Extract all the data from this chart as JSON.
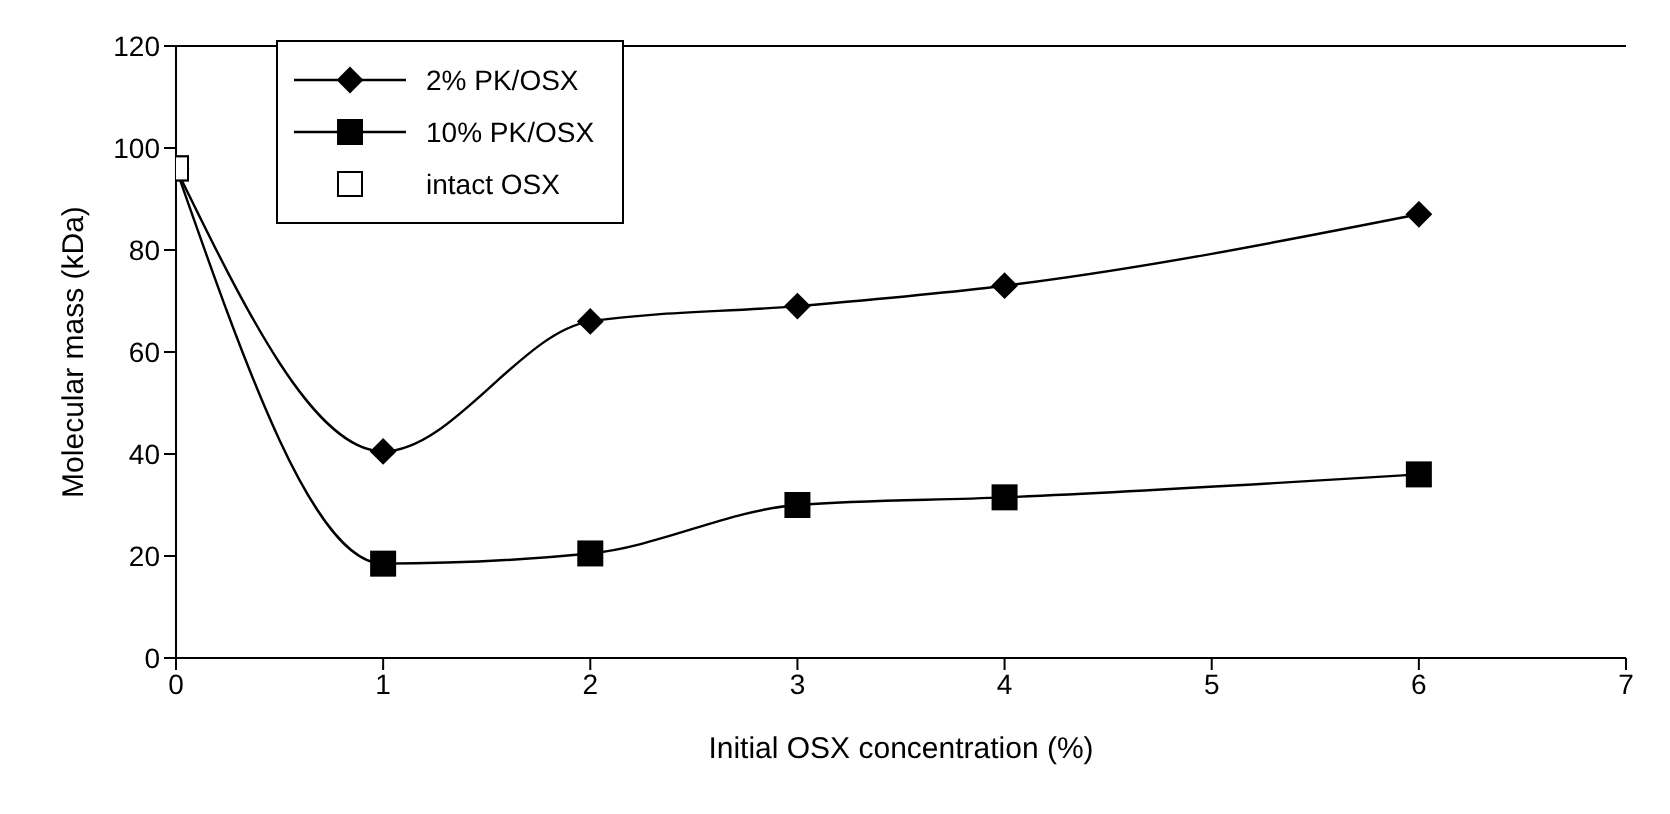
{
  "chart_data": {
    "type": "line",
    "xlabel": "Initial OSX concentration (%)",
    "ylabel": "Molecular mass (kDa)",
    "xlim": [
      0,
      7
    ],
    "xticks": [
      0,
      1,
      2,
      3,
      4,
      5,
      6,
      7
    ],
    "ylim": [
      0,
      120
    ],
    "yticks": [
      0,
      20,
      40,
      60,
      80,
      100,
      120
    ],
    "grid": false,
    "legend": "top left",
    "line_style": "solid",
    "series": [
      {
        "name": "2% PK/OSX",
        "color": "#000000",
        "marker": "diamond",
        "x": [
          0,
          1,
          2,
          3,
          4,
          6
        ],
        "values": [
          96,
          40.5,
          66,
          69,
          73,
          87
        ]
      },
      {
        "name": "10% PK/OSX",
        "color": "#000000",
        "marker": "square",
        "x": [
          0,
          1,
          2,
          3,
          4,
          6
        ],
        "values": [
          96,
          18.5,
          20.5,
          30,
          31.5,
          36
        ]
      },
      {
        "name": "intact OSX",
        "type": "scatter",
        "color": "#ffffff",
        "marker": "square",
        "x": [
          0
        ],
        "values": [
          96
        ]
      }
    ]
  }
}
